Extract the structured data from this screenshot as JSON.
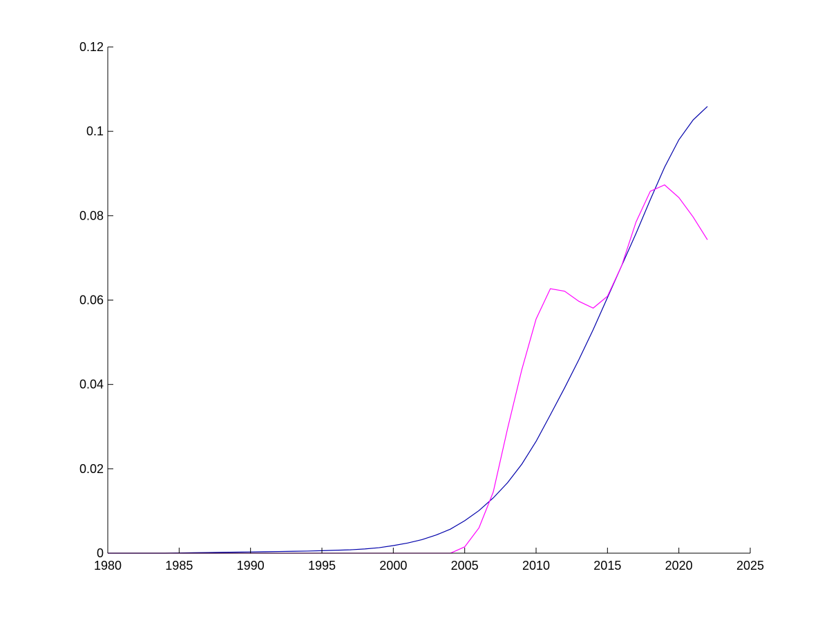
{
  "chart_data": {
    "type": "line",
    "title": "",
    "xlabel": "",
    "ylabel": "",
    "xlim": [
      1980,
      2025
    ],
    "ylim": [
      0,
      0.12
    ],
    "x_ticks": [
      1980,
      1985,
      1990,
      1995,
      2000,
      2005,
      2010,
      2015,
      2020,
      2025
    ],
    "x_tick_labels": [
      "1980",
      "1985",
      "1990",
      "1995",
      "2000",
      "2005",
      "2010",
      "2015",
      "2020",
      "2025"
    ],
    "y_ticks": [
      0,
      0.02,
      0.04,
      0.06,
      0.08,
      0.1,
      0.12
    ],
    "y_tick_labels": [
      "0",
      "0.02",
      "0.04",
      "0.06",
      "0.08",
      "0.1",
      "0.12"
    ],
    "grid": false,
    "legend": "none",
    "series": [
      {
        "color": "#0000aa",
        "x": [
          1980,
          1981,
          1982,
          1983,
          1984,
          1985,
          1986,
          1987,
          1988,
          1989,
          1990,
          1991,
          1992,
          1993,
          1994,
          1995,
          1996,
          1997,
          1998,
          1999,
          2000,
          2001,
          2002,
          2003,
          2004,
          2005,
          2006,
          2007,
          2008,
          2009,
          2010,
          2011,
          2012,
          2013,
          2014,
          2015,
          2016,
          2017,
          2018,
          2019,
          2020,
          2021,
          2022
        ],
        "y": [
          0,
          0,
          0,
          0,
          0,
          5e-05,
          0.0001,
          0.00015,
          0.0002,
          0.00025,
          0.0003,
          0.00035,
          0.0004,
          0.00045,
          0.0005,
          0.0006,
          0.0007,
          0.0008,
          0.001,
          0.0013,
          0.0018,
          0.0024,
          0.0032,
          0.0043,
          0.0057,
          0.0077,
          0.0101,
          0.0131,
          0.0167,
          0.0211,
          0.0265,
          0.0328,
          0.0392,
          0.0459,
          0.053,
          0.0606,
          0.0682,
          0.0758,
          0.0838,
          0.0915,
          0.098,
          0.1027,
          0.1059
        ]
      },
      {
        "color": "#ff00ff",
        "x": [
          1980,
          1981,
          1982,
          1983,
          1984,
          1985,
          1986,
          1987,
          1988,
          1989,
          1990,
          1991,
          1992,
          1993,
          1994,
          1995,
          1996,
          1997,
          1998,
          1999,
          2000,
          2001,
          2002,
          2003,
          2004,
          2005,
          2006,
          2007,
          2008,
          2009,
          2010,
          2011,
          2012,
          2013,
          2014,
          2015,
          2016,
          2017,
          2018,
          2019,
          2020,
          2021,
          2022
        ],
        "y": [
          0,
          0,
          0,
          0,
          0,
          0,
          0,
          0,
          0,
          0,
          0,
          0,
          0,
          0,
          0,
          0,
          0,
          0,
          0,
          0,
          0,
          0,
          0,
          0,
          0,
          0.0015,
          0.006,
          0.0145,
          0.0295,
          0.0435,
          0.0555,
          0.0627,
          0.0621,
          0.0597,
          0.0581,
          0.0609,
          0.0682,
          0.0785,
          0.0858,
          0.0873,
          0.0843,
          0.0797,
          0.0743
        ]
      }
    ]
  }
}
